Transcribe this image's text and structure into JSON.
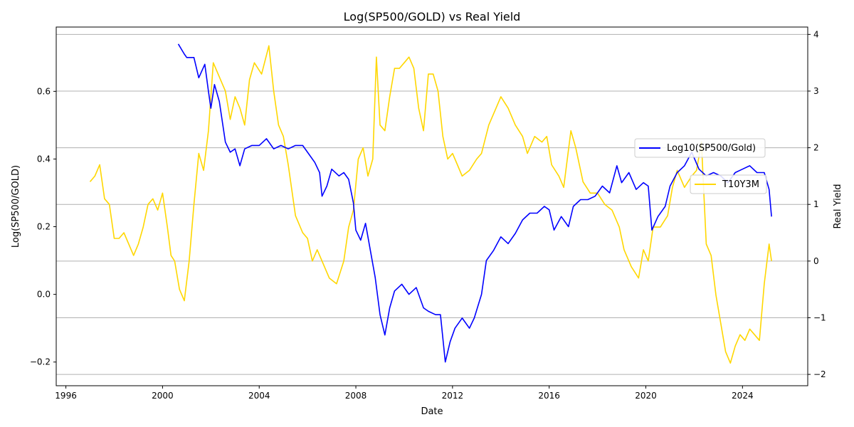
{
  "chart_data": {
    "type": "line",
    "title": "Log(SP500/GOLD) vs Real Yield",
    "xlabel": "Date",
    "ylabel_left": "Log(SP500/GOLD)",
    "ylabel_right": "Real Yield",
    "x_ticks": [
      "1996",
      "2000",
      "2004",
      "2008",
      "2012",
      "2016",
      "2020",
      "2024"
    ],
    "xlim": [
      1995.6,
      2026.7
    ],
    "y_left_ticks": [
      "−0.2",
      "0.0",
      "0.2",
      "0.4",
      "0.6"
    ],
    "y_left_lim": [
      -0.27,
      0.79
    ],
    "y_right_ticks": [
      "−2",
      "−1",
      "0",
      "1",
      "2",
      "3",
      "4"
    ],
    "y_right_lim": [
      -2.2,
      4.13
    ],
    "grid": "right-axis horizontal",
    "series": [
      {
        "name": "Log10(SP500/Gold)",
        "axis": "left",
        "color": "#0000ff",
        "points": [
          [
            2000.65,
            0.74
          ],
          [
            2000.9,
            0.71
          ],
          [
            2001.0,
            0.7
          ],
          [
            2001.3,
            0.7
          ],
          [
            2001.5,
            0.64
          ],
          [
            2001.75,
            0.68
          ],
          [
            2001.9,
            0.6
          ],
          [
            2002.0,
            0.55
          ],
          [
            2002.15,
            0.62
          ],
          [
            2002.35,
            0.57
          ],
          [
            2002.6,
            0.45
          ],
          [
            2002.8,
            0.42
          ],
          [
            2003.0,
            0.43
          ],
          [
            2003.2,
            0.38
          ],
          [
            2003.4,
            0.43
          ],
          [
            2003.7,
            0.44
          ],
          [
            2004.0,
            0.44
          ],
          [
            2004.3,
            0.46
          ],
          [
            2004.6,
            0.43
          ],
          [
            2004.9,
            0.44
          ],
          [
            2005.2,
            0.43
          ],
          [
            2005.5,
            0.44
          ],
          [
            2005.8,
            0.44
          ],
          [
            2006.0,
            0.42
          ],
          [
            2006.3,
            0.39
          ],
          [
            2006.5,
            0.36
          ],
          [
            2006.6,
            0.29
          ],
          [
            2006.8,
            0.32
          ],
          [
            2007.0,
            0.37
          ],
          [
            2007.3,
            0.35
          ],
          [
            2007.5,
            0.36
          ],
          [
            2007.7,
            0.34
          ],
          [
            2007.9,
            0.27
          ],
          [
            2008.0,
            0.19
          ],
          [
            2008.2,
            0.16
          ],
          [
            2008.4,
            0.21
          ],
          [
            2008.6,
            0.13
          ],
          [
            2008.8,
            0.05
          ],
          [
            2009.0,
            -0.06
          ],
          [
            2009.2,
            -0.12
          ],
          [
            2009.4,
            -0.04
          ],
          [
            2009.6,
            0.01
          ],
          [
            2009.9,
            0.03
          ],
          [
            2010.2,
            0.0
          ],
          [
            2010.5,
            0.02
          ],
          [
            2010.8,
            -0.04
          ],
          [
            2011.0,
            -0.05
          ],
          [
            2011.3,
            -0.06
          ],
          [
            2011.5,
            -0.06
          ],
          [
            2011.7,
            -0.2
          ],
          [
            2011.9,
            -0.14
          ],
          [
            2012.1,
            -0.1
          ],
          [
            2012.4,
            -0.07
          ],
          [
            2012.7,
            -0.1
          ],
          [
            2012.9,
            -0.07
          ],
          [
            2013.2,
            0.0
          ],
          [
            2013.4,
            0.1
          ],
          [
            2013.7,
            0.13
          ],
          [
            2014.0,
            0.17
          ],
          [
            2014.3,
            0.15
          ],
          [
            2014.6,
            0.18
          ],
          [
            2014.9,
            0.22
          ],
          [
            2015.2,
            0.24
          ],
          [
            2015.5,
            0.24
          ],
          [
            2015.8,
            0.26
          ],
          [
            2016.0,
            0.25
          ],
          [
            2016.2,
            0.19
          ],
          [
            2016.5,
            0.23
          ],
          [
            2016.8,
            0.2
          ],
          [
            2017.0,
            0.26
          ],
          [
            2017.3,
            0.28
          ],
          [
            2017.6,
            0.28
          ],
          [
            2017.9,
            0.29
          ],
          [
            2018.2,
            0.32
          ],
          [
            2018.5,
            0.3
          ],
          [
            2018.8,
            0.38
          ],
          [
            2019.0,
            0.33
          ],
          [
            2019.3,
            0.36
          ],
          [
            2019.6,
            0.31
          ],
          [
            2019.9,
            0.33
          ],
          [
            2020.1,
            0.32
          ],
          [
            2020.25,
            0.19
          ],
          [
            2020.5,
            0.23
          ],
          [
            2020.8,
            0.26
          ],
          [
            2021.0,
            0.32
          ],
          [
            2021.3,
            0.36
          ],
          [
            2021.6,
            0.38
          ],
          [
            2021.9,
            0.42
          ],
          [
            2022.2,
            0.37
          ],
          [
            2022.5,
            0.35
          ],
          [
            2022.8,
            0.36
          ],
          [
            2023.1,
            0.35
          ],
          [
            2023.4,
            0.33
          ],
          [
            2023.7,
            0.36
          ],
          [
            2024.0,
            0.37
          ],
          [
            2024.3,
            0.38
          ],
          [
            2024.6,
            0.36
          ],
          [
            2024.9,
            0.36
          ],
          [
            2025.1,
            0.31
          ],
          [
            2025.2,
            0.23
          ]
        ]
      },
      {
        "name": "T10Y3M",
        "axis": "right",
        "color": "#ffd700",
        "points": [
          [
            1997.0,
            1.4
          ],
          [
            1997.2,
            1.5
          ],
          [
            1997.4,
            1.7
          ],
          [
            1997.6,
            1.1
          ],
          [
            1997.8,
            1.0
          ],
          [
            1998.0,
            0.4
          ],
          [
            1998.2,
            0.4
          ],
          [
            1998.4,
            0.5
          ],
          [
            1998.6,
            0.3
          ],
          [
            1998.8,
            0.1
          ],
          [
            1999.0,
            0.3
          ],
          [
            1999.2,
            0.6
          ],
          [
            1999.4,
            1.0
          ],
          [
            1999.6,
            1.1
          ],
          [
            1999.8,
            0.9
          ],
          [
            2000.0,
            1.2
          ],
          [
            2000.2,
            0.6
          ],
          [
            2000.35,
            0.1
          ],
          [
            2000.5,
            0.0
          ],
          [
            2000.7,
            -0.5
          ],
          [
            2000.9,
            -0.7
          ],
          [
            2001.1,
            0.0
          ],
          [
            2001.3,
            1.0
          ],
          [
            2001.5,
            1.9
          ],
          [
            2001.7,
            1.6
          ],
          [
            2001.9,
            2.3
          ],
          [
            2002.1,
            3.5
          ],
          [
            2002.3,
            3.3
          ],
          [
            2002.6,
            3.0
          ],
          [
            2002.8,
            2.5
          ],
          [
            2003.0,
            2.9
          ],
          [
            2003.2,
            2.7
          ],
          [
            2003.4,
            2.4
          ],
          [
            2003.6,
            3.2
          ],
          [
            2003.8,
            3.5
          ],
          [
            2004.1,
            3.3
          ],
          [
            2004.4,
            3.8
          ],
          [
            2004.6,
            3.0
          ],
          [
            2004.8,
            2.4
          ],
          [
            2005.0,
            2.2
          ],
          [
            2005.2,
            1.7
          ],
          [
            2005.5,
            0.8
          ],
          [
            2005.8,
            0.5
          ],
          [
            2006.0,
            0.4
          ],
          [
            2006.2,
            0.0
          ],
          [
            2006.4,
            0.2
          ],
          [
            2006.6,
            0.0
          ],
          [
            2006.9,
            -0.3
          ],
          [
            2007.2,
            -0.4
          ],
          [
            2007.5,
            0.0
          ],
          [
            2007.7,
            0.6
          ],
          [
            2007.9,
            0.9
          ],
          [
            2008.1,
            1.8
          ],
          [
            2008.3,
            2.0
          ],
          [
            2008.5,
            1.5
          ],
          [
            2008.7,
            1.8
          ],
          [
            2008.85,
            3.6
          ],
          [
            2009.0,
            2.4
          ],
          [
            2009.2,
            2.3
          ],
          [
            2009.4,
            2.9
          ],
          [
            2009.6,
            3.4
          ],
          [
            2009.8,
            3.4
          ],
          [
            2010.0,
            3.5
          ],
          [
            2010.2,
            3.6
          ],
          [
            2010.4,
            3.4
          ],
          [
            2010.6,
            2.7
          ],
          [
            2010.8,
            2.3
          ],
          [
            2011.0,
            3.3
          ],
          [
            2011.2,
            3.3
          ],
          [
            2011.4,
            3.0
          ],
          [
            2011.6,
            2.2
          ],
          [
            2011.8,
            1.8
          ],
          [
            2012.0,
            1.9
          ],
          [
            2012.2,
            1.7
          ],
          [
            2012.4,
            1.5
          ],
          [
            2012.7,
            1.6
          ],
          [
            2013.0,
            1.8
          ],
          [
            2013.2,
            1.9
          ],
          [
            2013.5,
            2.4
          ],
          [
            2013.8,
            2.7
          ],
          [
            2014.0,
            2.9
          ],
          [
            2014.3,
            2.7
          ],
          [
            2014.6,
            2.4
          ],
          [
            2014.9,
            2.2
          ],
          [
            2015.1,
            1.9
          ],
          [
            2015.4,
            2.2
          ],
          [
            2015.7,
            2.1
          ],
          [
            2015.9,
            2.2
          ],
          [
            2016.1,
            1.7
          ],
          [
            2016.4,
            1.5
          ],
          [
            2016.6,
            1.3
          ],
          [
            2016.9,
            2.3
          ],
          [
            2017.1,
            2.0
          ],
          [
            2017.4,
            1.4
          ],
          [
            2017.7,
            1.2
          ],
          [
            2018.0,
            1.2
          ],
          [
            2018.3,
            1.0
          ],
          [
            2018.6,
            0.9
          ],
          [
            2018.9,
            0.6
          ],
          [
            2019.1,
            0.2
          ],
          [
            2019.4,
            -0.1
          ],
          [
            2019.7,
            -0.3
          ],
          [
            2019.9,
            0.2
          ],
          [
            2020.1,
            0.0
          ],
          [
            2020.3,
            0.6
          ],
          [
            2020.6,
            0.6
          ],
          [
            2020.9,
            0.8
          ],
          [
            2021.1,
            1.3
          ],
          [
            2021.3,
            1.6
          ],
          [
            2021.6,
            1.3
          ],
          [
            2021.9,
            1.5
          ],
          [
            2022.1,
            1.6
          ],
          [
            2022.3,
            2.1
          ],
          [
            2022.5,
            0.3
          ],
          [
            2022.7,
            0.1
          ],
          [
            2022.9,
            -0.6
          ],
          [
            2023.1,
            -1.1
          ],
          [
            2023.3,
            -1.6
          ],
          [
            2023.5,
            -1.8
          ],
          [
            2023.7,
            -1.5
          ],
          [
            2023.9,
            -1.3
          ],
          [
            2024.1,
            -1.4
          ],
          [
            2024.3,
            -1.2
          ],
          [
            2024.5,
            -1.3
          ],
          [
            2024.7,
            -1.4
          ],
          [
            2024.9,
            -0.4
          ],
          [
            2025.1,
            0.3
          ],
          [
            2025.2,
            0.0
          ]
        ]
      }
    ]
  }
}
